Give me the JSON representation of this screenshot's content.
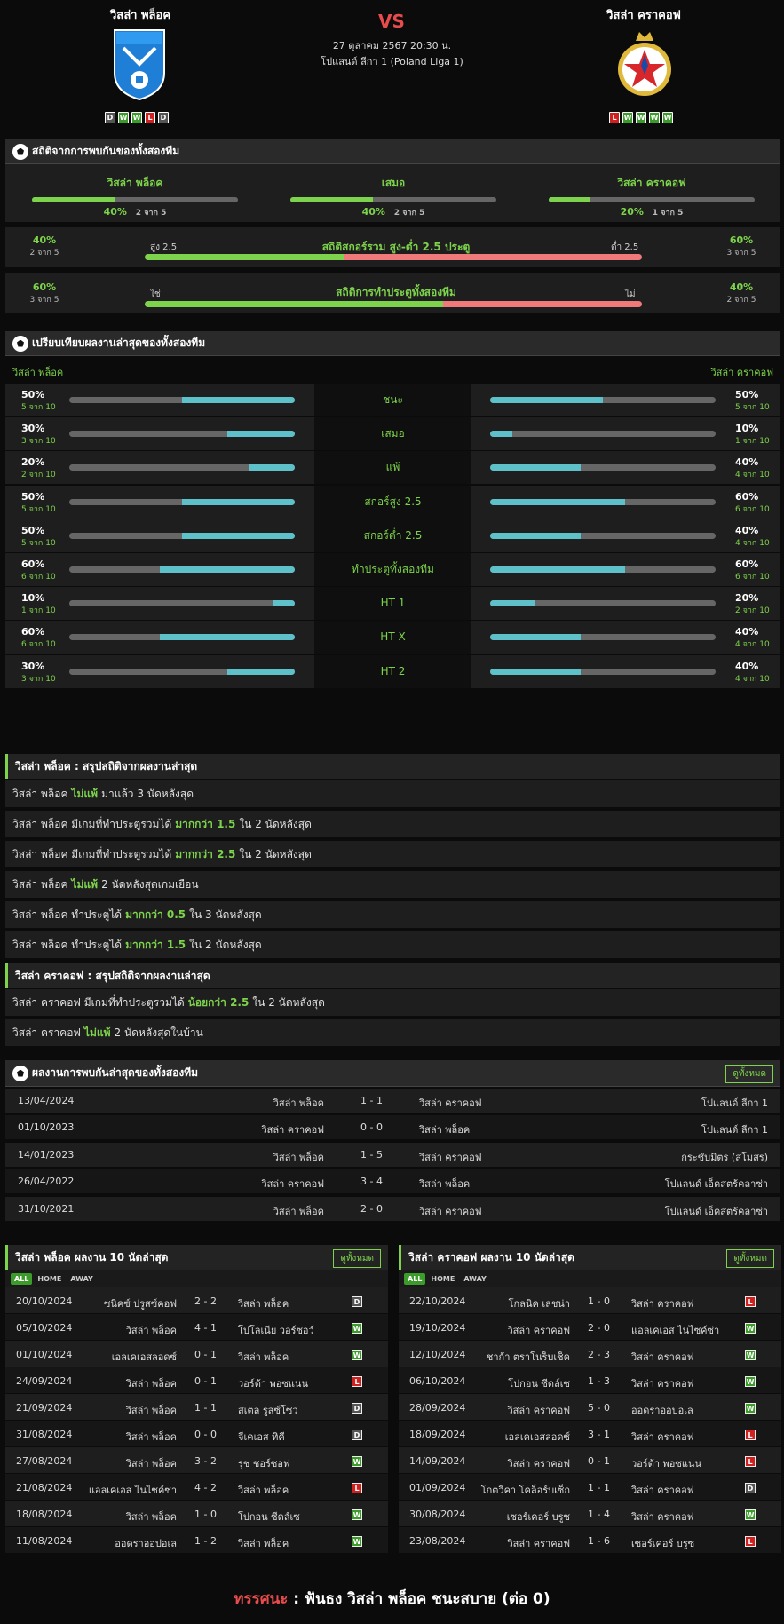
{
  "home": {
    "name": "วิสล่า พล็อค",
    "form": [
      "D",
      "W",
      "W",
      "L",
      "D"
    ]
  },
  "away": {
    "name": "วิสล่า คราคอฟ",
    "form": [
      "L",
      "W",
      "W",
      "W",
      "W"
    ]
  },
  "match": {
    "vs": "VS",
    "datetime": "27 ตุลาคม 2567 20:30 น.",
    "league": "โปแลนด์ ลีกา 1 (Poland Liga 1)"
  },
  "h2h_section": {
    "title": "สถิติจากการพบกันของทั้งสองทีม",
    "cols": [
      {
        "label": "วิสล่า พล็อค",
        "pct": "40%",
        "sub": "2 จาก 5",
        "frac": 0.4
      },
      {
        "label": "เสมอ",
        "pct": "40%",
        "sub": "2 จาก 5",
        "frac": 0.4
      },
      {
        "label": "วิสล่า คราคอฟ",
        "pct": "20%",
        "sub": "1 จาก 5",
        "frac": 0.2
      }
    ],
    "ou": {
      "title": "สถิติสกอร์รวม สูง-ต่ำ 2.5 ประตู",
      "left_lbl": "สูง 2.5",
      "right_lbl": "ต่ำ 2.5",
      "lp": "40%",
      "ls": "2 จาก 5",
      "rp": "60%",
      "rs": "3 จาก 5",
      "frac": 0.4
    },
    "btts": {
      "title": "สถิติการทำประตูทั้งสองทีม",
      "left_lbl": "ใช่",
      "right_lbl": "ไม่",
      "lp": "60%",
      "ls": "3 จาก 5",
      "rp": "40%",
      "rs": "2 จาก 5",
      "frac": 0.6
    }
  },
  "cmp_section": {
    "title": "เปรียบเทียบผลงานล่าสุดของทั้งสองทีม",
    "home": "วิสล่า พล็อค",
    "away": "วิสล่า คราคอฟ",
    "rows": [
      {
        "label": "ชนะ",
        "lp": "50%",
        "ls": "5 จาก 10",
        "lf": 0.5,
        "rp": "50%",
        "rs": "5 จาก 10",
        "rf": 0.5
      },
      {
        "label": "เสมอ",
        "lp": "30%",
        "ls": "3 จาก 10",
        "lf": 0.3,
        "rp": "10%",
        "rs": "1 จาก 10",
        "rf": 0.1
      },
      {
        "label": "แพ้",
        "lp": "20%",
        "ls": "2 จาก 10",
        "lf": 0.2,
        "rp": "40%",
        "rs": "4 จาก 10",
        "rf": 0.4
      },
      {
        "label": "สกอร์สูง 2.5",
        "lp": "50%",
        "ls": "5 จาก 10",
        "lf": 0.5,
        "rp": "60%",
        "rs": "6 จาก 10",
        "rf": 0.6
      },
      {
        "label": "สกอร์ต่ำ 2.5",
        "lp": "50%",
        "ls": "5 จาก 10",
        "lf": 0.5,
        "rp": "40%",
        "rs": "4 จาก 10",
        "rf": 0.4
      },
      {
        "label": "ทำประตูทั้งสองทีม",
        "lp": "60%",
        "ls": "6 จาก 10",
        "lf": 0.6,
        "rp": "60%",
        "rs": "6 จาก 10",
        "rf": 0.6
      },
      {
        "label": "HT 1",
        "lp": "10%",
        "ls": "1 จาก 10",
        "lf": 0.1,
        "rp": "20%",
        "rs": "2 จาก 10",
        "rf": 0.2
      },
      {
        "label": "HT X",
        "lp": "60%",
        "ls": "6 จาก 10",
        "lf": 0.6,
        "rp": "40%",
        "rs": "4 จาก 10",
        "rf": 0.4
      },
      {
        "label": "HT 2",
        "lp": "30%",
        "ls": "3 จาก 10",
        "lf": 0.3,
        "rp": "40%",
        "rs": "4 จาก 10",
        "rf": 0.4
      }
    ]
  },
  "home_summary": {
    "title": "วิสล่า พล็อค : สรุปสถิติจากผลงานล่าสุด",
    "rows": [
      [
        "วิสล่า พล็อค",
        "ไม่แพ้",
        "มาแล้ว 3 นัดหลังสุด"
      ],
      [
        "วิสล่า พล็อค มีเกมที่ทำประตูรวมได้",
        "มากกว่า 1.5",
        "ใน 2 นัดหลังสุด"
      ],
      [
        "วิสล่า พล็อค มีเกมที่ทำประตูรวมได้",
        "มากกว่า 2.5",
        "ใน 2 นัดหลังสุด"
      ],
      [
        "วิสล่า พล็อค",
        "ไม่แพ้",
        "2 นัดหลังสุดเกมเยือน"
      ],
      [
        "วิสล่า พล็อค ทำประตูได้",
        "มากกว่า 0.5",
        "ใน 3 นัดหลังสุด"
      ],
      [
        "วิสล่า พล็อค ทำประตูได้",
        "มากกว่า 1.5",
        "ใน 2 นัดหลังสุด"
      ]
    ]
  },
  "away_summary": {
    "title": "วิสล่า คราคอฟ : สรุปสถิติจากผลงานล่าสุด",
    "rows": [
      [
        "วิสล่า คราคอฟ มีเกมที่ทำประตูรวมได้",
        "น้อยกว่า 2.5",
        "ใน 2 นัดหลังสุด"
      ],
      [
        "วิสล่า คราคอฟ",
        "ไม่แพ้",
        "2 นัดหลังสุดในบ้าน"
      ]
    ]
  },
  "h2h_matches": {
    "title": "ผลงานการพบกันล่าสุดของทั้งสองทีม",
    "see_all": "ดูทั้งหมด",
    "rows": [
      [
        "13/04/2024",
        "วิสล่า พล็อค",
        "1 - 1",
        "วิสล่า คราคอฟ",
        "โปแลนด์ ลีกา 1"
      ],
      [
        "01/10/2023",
        "วิสล่า คราคอฟ",
        "0 - 0",
        "วิสล่า พล็อค",
        "โปแลนด์ ลีกา 1"
      ],
      [
        "14/01/2023",
        "วิสล่า พล็อค",
        "1 - 5",
        "วิสล่า คราคอฟ",
        "กระชับมิตร (สโมสร)"
      ],
      [
        "26/04/2022",
        "วิสล่า คราคอฟ",
        "3 - 4",
        "วิสล่า พล็อค",
        "โปแลนด์ เอ็คสตร้คลาซ่า"
      ],
      [
        "31/10/2021",
        "วิสล่า พล็อค",
        "2 - 0",
        "วิสล่า คราคอฟ",
        "โปแลนด์ เอ็คสตร้คลาซ่า"
      ]
    ]
  },
  "tabs": [
    "ALL",
    "HOME",
    "AWAY"
  ],
  "home_last10": {
    "title": "วิสล่า พล็อค ผลงาน 10 นัดล่าสุด",
    "see_all": "ดูทั้งหมด",
    "rows": [
      [
        "20/10/2024",
        "ซนิคซ์ ปรูสซ์คอฟ",
        "2 - 2",
        "วิสล่า พล็อค",
        "D"
      ],
      [
        "05/10/2024",
        "วิสล่า พล็อค",
        "4 - 1",
        "โปโลเนีย วอร์ซอว์",
        "W"
      ],
      [
        "01/10/2024",
        "เอลเคเอสลอดซ์",
        "0 - 1",
        "วิสล่า พล็อค",
        "W"
      ],
      [
        "24/09/2024",
        "วิสล่า พล็อค",
        "0 - 1",
        "วอร์ต้า พอซแนน",
        "L"
      ],
      [
        "21/09/2024",
        "วิสล่า พล็อค",
        "1 - 1",
        "สเตล รูสซ์โซว",
        "D"
      ],
      [
        "31/08/2024",
        "วิสล่า พล็อค",
        "0 - 0",
        "จีเคเอส ทิคี",
        "D"
      ],
      [
        "27/08/2024",
        "วิสล่า พล็อค",
        "3 - 2",
        "รุช ชอร์ซอฟ",
        "W"
      ],
      [
        "21/08/2024",
        "แอลเคเอส ไนไซค์ซ่า",
        "4 - 2",
        "วิสล่า พล็อค",
        "L"
      ],
      [
        "18/08/2024",
        "วิสล่า พล็อค",
        "1 - 0",
        "โปกอน ซีดล์เซ",
        "W"
      ],
      [
        "11/08/2024",
        "ออดราออปอเล",
        "1 - 2",
        "วิสล่า พล็อค",
        "W"
      ]
    ]
  },
  "away_last10": {
    "title": "วิสล่า คราคอฟ ผลงาน 10 นัดล่าสุด",
    "see_all": "ดูทั้งหมด",
    "rows": [
      [
        "22/10/2024",
        "โกลนิค เลชน่า",
        "1 - 0",
        "วิสล่า คราคอฟ",
        "L"
      ],
      [
        "19/10/2024",
        "วิสล่า คราคอฟ",
        "2 - 0",
        "แอลเคเอส ไนไซค์ซ่า",
        "W"
      ],
      [
        "12/10/2024",
        "ชาก้า ตราโนร็บเช็ค",
        "2 - 3",
        "วิสล่า คราคอฟ",
        "W"
      ],
      [
        "06/10/2024",
        "โปกอน ซีดล์เซ",
        "1 - 3",
        "วิสล่า คราคอฟ",
        "W"
      ],
      [
        "28/09/2024",
        "วิสล่า คราคอฟ",
        "5 - 0",
        "ออดราออปอเล",
        "W"
      ],
      [
        "18/09/2024",
        "เอลเคเอสลอดซ์",
        "3 - 1",
        "วิสล่า คราคอฟ",
        "L"
      ],
      [
        "14/09/2024",
        "วิสล่า คราคอฟ",
        "0 - 1",
        "วอร์ต้า พอซแนน",
        "L"
      ],
      [
        "01/09/2024",
        "โกตวิคา โคล็อร์บเซ็ก",
        "1 - 1",
        "วิสล่า คราคอฟ",
        "D"
      ],
      [
        "30/08/2024",
        "เซอร์เคอร์ บรูซ",
        "1 - 4",
        "วิสล่า คราคอฟ",
        "W"
      ],
      [
        "23/08/2024",
        "วิสล่า คราคอฟ",
        "1 - 6",
        "เซอร์เคอร์ บรูซ",
        "L"
      ]
    ]
  },
  "verdict": {
    "label": "ทรรศนะ",
    "colon": " :",
    "text": " ฟันธง วิสล่า พล็อค ชนะสบาย (ต่อ 0)"
  },
  "colors": {
    "accent": "#7dd34b",
    "red": "#e84b4b",
    "cyan": "#5ec0c8",
    "win": "#3c9c2a",
    "loss": "#d02020",
    "draw": "#555555"
  }
}
